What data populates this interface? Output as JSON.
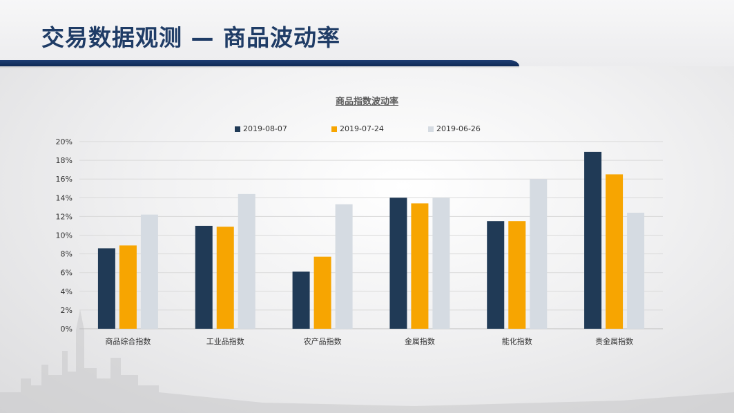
{
  "page": {
    "title": "交易数据观测 — 商品波动率"
  },
  "colors": {
    "title": "#1f3c66",
    "rule": "#1e3d73",
    "series": [
      "#203a56",
      "#f7a501",
      "#d5dbe2"
    ]
  },
  "chart_data": {
    "type": "bar",
    "title": "商品指数波动率",
    "xlabel": "",
    "ylabel": "",
    "ylim": [
      0,
      20
    ],
    "y_ticks": [
      "0%",
      "2%",
      "4%",
      "6%",
      "8%",
      "10%",
      "12%",
      "14%",
      "16%",
      "18%",
      "20%"
    ],
    "y_tick_values": [
      0,
      2,
      4,
      6,
      8,
      10,
      12,
      14,
      16,
      18,
      20
    ],
    "y_unit": "%",
    "grid": true,
    "legend_position": "top",
    "categories": [
      "商品综合指数",
      "工业品指数",
      "农产品指数",
      "金属指数",
      "能化指数",
      "贵金属指数"
    ],
    "series": [
      {
        "name": "2019-08-07",
        "color": "#203a56",
        "values": [
          8.6,
          11.0,
          6.1,
          14.0,
          11.5,
          18.9
        ]
      },
      {
        "name": "2019-07-24",
        "color": "#f7a501",
        "values": [
          8.9,
          10.9,
          7.7,
          13.4,
          11.5,
          16.5
        ]
      },
      {
        "name": "2019-06-26",
        "color": "#d5dbe2",
        "values": [
          12.2,
          14.4,
          13.3,
          14.0,
          16.0,
          12.4
        ]
      }
    ]
  }
}
